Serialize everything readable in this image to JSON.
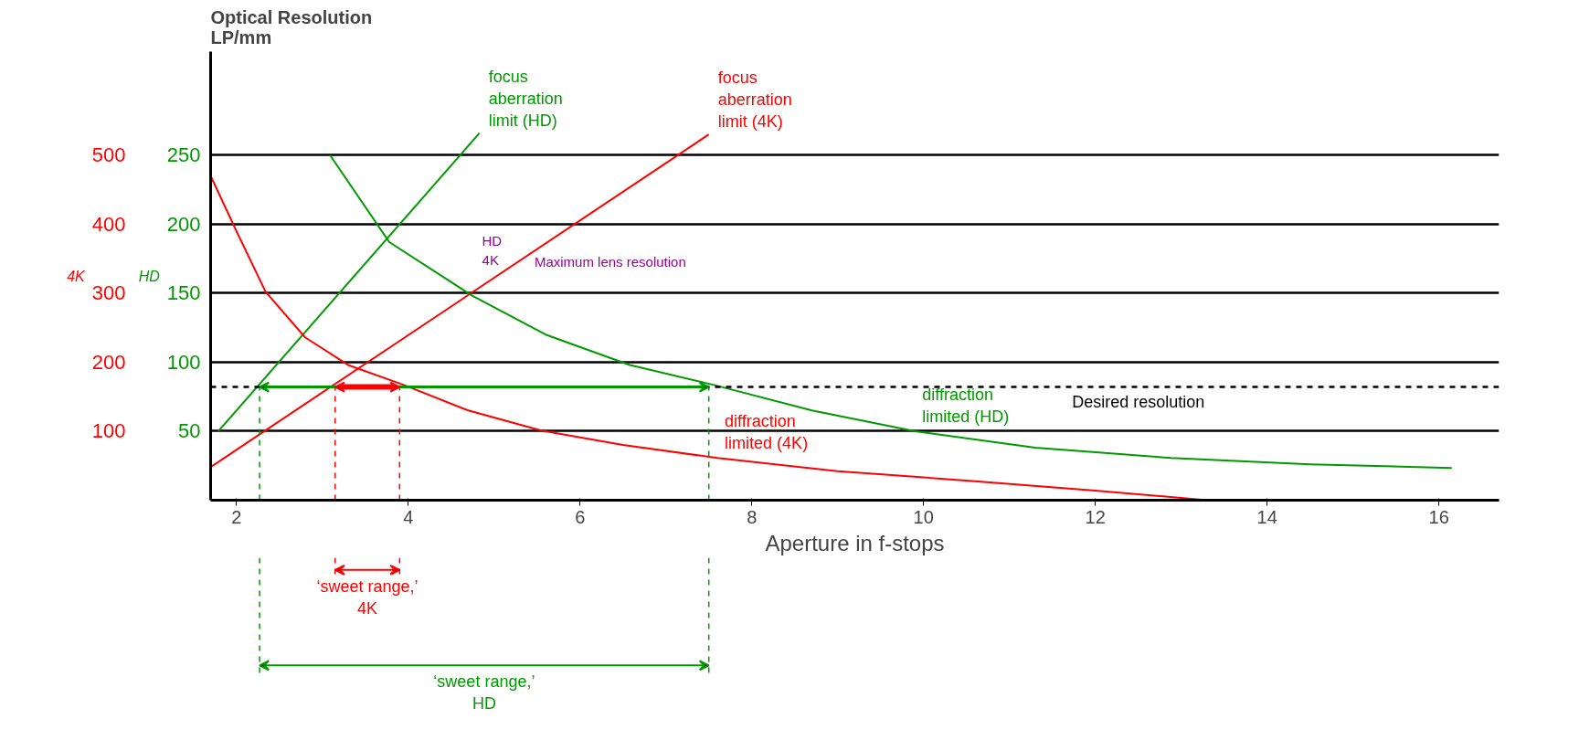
{
  "chart_data": {
    "type": "line",
    "title": "Optical Resolution\nLP/mm",
    "xlabel": "Aperture in f-stops",
    "ylabel": "HD",
    "y2label": "4K",
    "xlim": [
      1.7,
      16.7
    ],
    "xticks": [
      2,
      4,
      6,
      8,
      10,
      12,
      14,
      16
    ],
    "ylim": [
      0,
      325
    ],
    "yticks": [
      50,
      100,
      150,
      200,
      250
    ],
    "y2lim": [
      0,
      650
    ],
    "y2ticks": [
      100,
      200,
      300,
      400,
      500
    ],
    "grid": "y",
    "series": [
      {
        "name": "focus\naberration\nlimit (HD)",
        "color": "#009900",
        "x": [
          1.79,
          4.83
        ],
        "values": [
          50,
          266
        ]
      },
      {
        "name": "focus\naberration\nlimit (4K)",
        "color": "#ff0000",
        "x": [
          1.7,
          7.5
        ],
        "values": [
          24,
          265
        ]
      },
      {
        "name": "diffraction\nlimited (HD)",
        "color": "#009900",
        "x": [
          3.09,
          3.78,
          4.75,
          5.6,
          6.58,
          7.56,
          8.7,
          9.9,
          11.3,
          12.88,
          14.5,
          16.15
        ],
        "values": [
          250,
          187,
          148,
          120,
          98,
          83.5,
          65,
          50,
          38,
          30.6,
          26,
          23.4
        ]
      },
      {
        "name": "diffraction\nlimited (4K)",
        "color": "#ff0000",
        "x": [
          1.7,
          2.0,
          2.34,
          2.8,
          3.3,
          3.95,
          4.7,
          5.55,
          6.5,
          7.6,
          9,
          10.6,
          12,
          13.3
        ],
        "values": [
          235,
          195,
          151,
          118,
          98,
          83.5,
          65,
          50.5,
          40,
          30.6,
          21,
          13.8,
          7,
          0
        ]
      }
    ],
    "ref_lines": [
      {
        "axis": "y",
        "value": 82,
        "label": "Desired resolution",
        "color": "#000000",
        "line_style": "dashed"
      },
      {
        "axis": "x",
        "value": 2.27,
        "color": "#009900",
        "line_style": "dashed"
      },
      {
        "axis": "x",
        "value": 7.5,
        "color": "#009900",
        "line_style": "dashed"
      },
      {
        "axis": "x",
        "value": 3.15,
        "color": "#ff0000",
        "line_style": "dashed"
      },
      {
        "axis": "x",
        "value": 3.9,
        "color": "#ff0000",
        "line_style": "dashed"
      }
    ],
    "annotations": [
      "HD\n4K",
      "Maximum lens resolution",
      "‘sweet range,’\nHD",
      "‘sweet range,’\n4K"
    ]
  }
}
